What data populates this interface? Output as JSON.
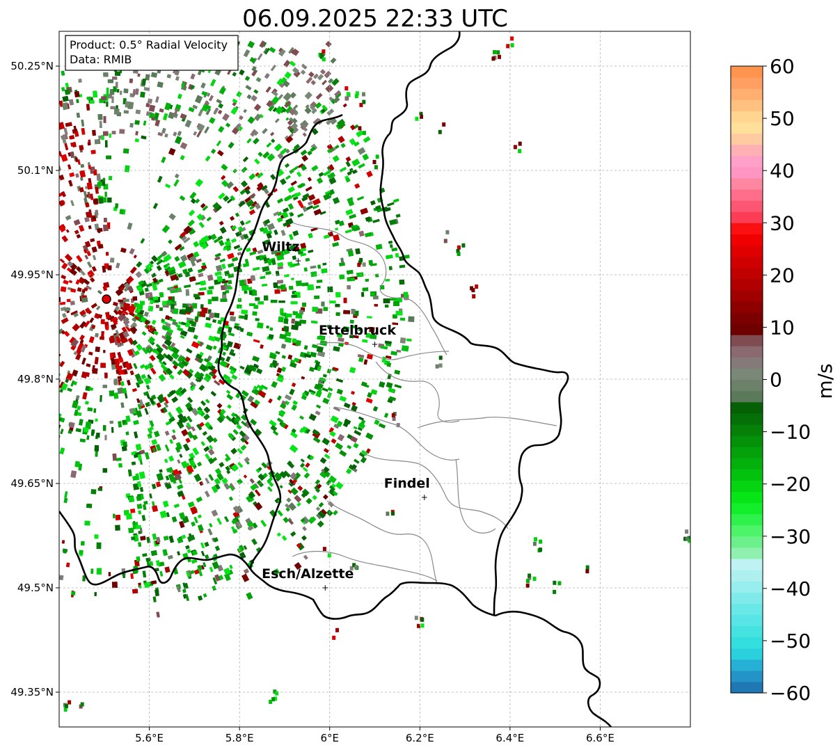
{
  "title": "06.09.2025 22:33 UTC",
  "info_box": {
    "product": "Product: 0.5° Radial Velocity",
    "data_source": "Data: RMIB"
  },
  "map": {
    "lon_range": [
      5.4,
      6.8
    ],
    "lat_range": [
      49.3,
      50.3
    ],
    "x_ticks": [
      {
        "value": 5.6,
        "label": "5.6°E"
      },
      {
        "value": 5.8,
        "label": "5.8°E"
      },
      {
        "value": 6.0,
        "label": "6°E"
      },
      {
        "value": 6.2,
        "label": "6.2°E"
      },
      {
        "value": 6.4,
        "label": "6.4°E"
      },
      {
        "value": 6.6,
        "label": "6.6°E"
      }
    ],
    "y_ticks": [
      {
        "value": 50.25,
        "label": "50.25°N"
      },
      {
        "value": 50.1,
        "label": "50.1°N"
      },
      {
        "value": 49.95,
        "label": "49.95°N"
      },
      {
        "value": 49.8,
        "label": "49.8°N"
      },
      {
        "value": 49.65,
        "label": "49.65°N"
      },
      {
        "value": 49.5,
        "label": "49.5°N"
      },
      {
        "value": 49.35,
        "label": "49.35°N"
      }
    ],
    "grid": true,
    "radar_site": {
      "lon": 5.505,
      "lat": 49.915,
      "marker": "red-circle"
    },
    "cities": [
      {
        "name": "Wiltz",
        "lon": 5.93,
        "lat": 49.97
      },
      {
        "name": "Ettelbruck",
        "lon": 6.1,
        "lat": 49.85
      },
      {
        "name": "Findel",
        "lon": 6.21,
        "lat": 49.63
      },
      {
        "name": "Esch/Alzette",
        "lon": 5.99,
        "lat": 49.5
      }
    ]
  },
  "colorbar": {
    "label": "m/s",
    "range": [
      -60,
      60
    ],
    "ticks": [
      {
        "value": 60,
        "label": "60"
      },
      {
        "value": 50,
        "label": "50"
      },
      {
        "value": 40,
        "label": "40"
      },
      {
        "value": 30,
        "label": "30"
      },
      {
        "value": 20,
        "label": "20"
      },
      {
        "value": 10,
        "label": "10"
      },
      {
        "value": 0,
        "label": "0"
      },
      {
        "value": -10,
        "label": "−10"
      },
      {
        "value": -20,
        "label": "−20"
      },
      {
        "value": -30,
        "label": "−30"
      },
      {
        "value": -40,
        "label": "−40"
      },
      {
        "value": -50,
        "label": "−50"
      },
      {
        "value": -60,
        "label": "−60"
      }
    ],
    "colors": [
      "#1f77b4",
      "#2494c8",
      "#26b0d6",
      "#2bd0dd",
      "#33dede",
      "#45e2e2",
      "#58e5e5",
      "#6ae8e8",
      "#80eaea",
      "#98eeee",
      "#aef0f0",
      "#bff3f3",
      "#8ff0b0",
      "#6cf08b",
      "#4df46a",
      "#2ef24b",
      "#13ee2a",
      "#06e516",
      "#04d411",
      "#03c20e",
      "#04b10c",
      "#05a10b",
      "#05900a",
      "#068009",
      "#056f08",
      "#056006",
      "#5b7a5a",
      "#6b8169",
      "#7a8877",
      "#857a7a",
      "#8a6a70",
      "#7f4c52",
      "#6e0000",
      "#7d0000",
      "#8e0000",
      "#a00000",
      "#b00000",
      "#c10000",
      "#d10000",
      "#e00000",
      "#f00000",
      "#fa1010",
      "#fd3d55",
      "#fd5672",
      "#fe6e8a",
      "#fe86a0",
      "#ff95c2",
      "#ffa0c8",
      "#ffb0b4",
      "#ffcaa0",
      "#ffe09a",
      "#ffd590",
      "#ffc080",
      "#ffb070",
      "#ff9f62",
      "#ff944f"
    ]
  }
}
